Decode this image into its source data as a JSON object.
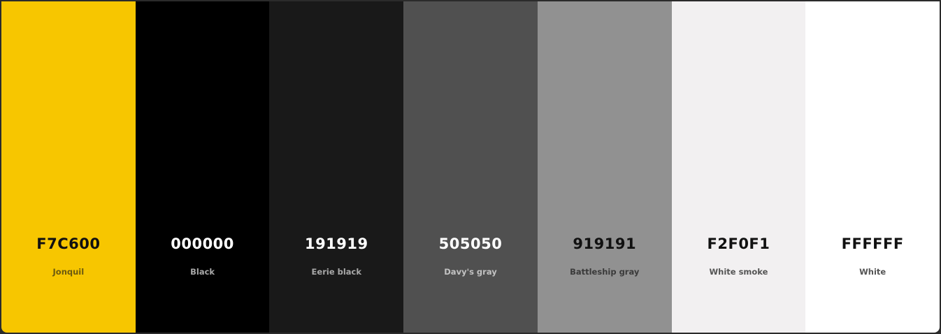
{
  "palette": {
    "swatches": [
      {
        "hex": "F7C600",
        "name": "Jonquil",
        "bg": "#F7C600",
        "hex_color": "#111111",
        "name_color": "#6b5a10"
      },
      {
        "hex": "000000",
        "name": "Black",
        "bg": "#000000",
        "hex_color": "#ffffff",
        "name_color": "#a8a8a8"
      },
      {
        "hex": "191919",
        "name": "Eerie black",
        "bg": "#191919",
        "hex_color": "#ffffff",
        "name_color": "#a8a8a8"
      },
      {
        "hex": "505050",
        "name": "Davy's gray",
        "bg": "#505050",
        "hex_color": "#ffffff",
        "name_color": "#c2c2c2"
      },
      {
        "hex": "919191",
        "name": "Battleship gray",
        "bg": "#919191",
        "hex_color": "#111111",
        "name_color": "#3a3a3a"
      },
      {
        "hex": "F2F0F1",
        "name": "White smoke",
        "bg": "#F2F0F1",
        "hex_color": "#111111",
        "name_color": "#555555"
      },
      {
        "hex": "FFFFFF",
        "name": "White",
        "bg": "#FFFFFF",
        "hex_color": "#111111",
        "name_color": "#555555"
      }
    ]
  }
}
